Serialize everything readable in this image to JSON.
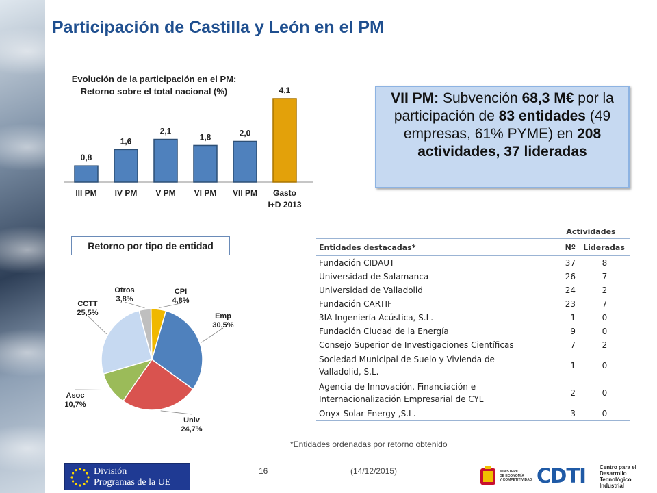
{
  "slide": {
    "title": "Participación de Castilla y León en el PM",
    "page_number": "16",
    "date": "(14/12/2015)",
    "footnote": "*Entidades ordenadas por retorno obtenido"
  },
  "infobox": {
    "part1": "VII PM:",
    "part2": " Subvención ",
    "part3": "68,3 M€",
    "part4": " por la participación de ",
    "part5": "83 entidades",
    "part6": " (49 empresas, 61% PYME) en ",
    "part7": "208 actividades, 37 lideradas"
  },
  "retorno_label": "Retorno por tipo de entidad",
  "chart_data": [
    {
      "type": "bar",
      "title": "Evolución de la participación en el PM:",
      "subtitle": "Retorno sobre el total nacional (%)",
      "categories": [
        "III PM",
        "IV PM",
        "V PM",
        "VI PM",
        "VII PM",
        "Gasto I+D 2013"
      ],
      "values": [
        0.8,
        1.6,
        2.1,
        1.8,
        2.0,
        4.1
      ],
      "value_labels": [
        "0,8",
        "1,6",
        "2,1",
        "1,8",
        "2,0",
        "4,1"
      ],
      "ylim": [
        0,
        4.1
      ],
      "grid": false,
      "colors": [
        "#4f81bd",
        "#4f81bd",
        "#4f81bd",
        "#4f81bd",
        "#4f81bd",
        "#e3a10a"
      ]
    },
    {
      "type": "pie",
      "labels": [
        "CPI",
        "Emp",
        "Univ",
        "Asoc",
        "CCTT",
        "Otros"
      ],
      "values": [
        4.8,
        30.5,
        24.7,
        10.7,
        25.5,
        3.8
      ],
      "value_labels": [
        "4,8%",
        "30,5%",
        "24,7%",
        "10,7%",
        "25,5%",
        "3,8%"
      ],
      "colors": [
        "#f0b800",
        "#4f81bd",
        "#d9534f",
        "#9bbb59",
        "#c6d9f1",
        "#bfbfbf"
      ]
    }
  ],
  "table": {
    "group_header": "Actividades",
    "columns": [
      "Entidades destacadas*",
      "Nº",
      "Lideradas"
    ],
    "rows": [
      {
        "name": "Fundación CIDAUT",
        "n": "37",
        "lid": "8"
      },
      {
        "name": "Universidad de Salamanca",
        "n": "26",
        "lid": "7"
      },
      {
        "name": "Universidad de Valladolid",
        "n": "24",
        "lid": "2"
      },
      {
        "name": "Fundación CARTIF",
        "n": "23",
        "lid": "7"
      },
      {
        "name": "3IA Ingeniería Acústica, S.L.",
        "n": "1",
        "lid": "0"
      },
      {
        "name": "Fundación Ciudad de la Energía",
        "n": "9",
        "lid": "0"
      },
      {
        "name": "Consejo Superior de Investigaciones Científicas",
        "n": "7",
        "lid": "2"
      },
      {
        "name": "Sociedad Municipal de Suelo y Vivienda de Valladolid, S.L.",
        "n": "1",
        "lid": "0"
      },
      {
        "name": "Agencia de Innovación, Financiación e Internacionalización Empresarial de CYL",
        "n": "2",
        "lid": "0"
      },
      {
        "name": "Onyx-Solar Energy ,S.L.",
        "n": "3",
        "lid": "0"
      }
    ]
  },
  "footer": {
    "division_line1": "División",
    "division_line2": "Programas de la UE",
    "ministerio_line1": "MINISTERIO",
    "ministerio_line2": "DE ECONOMÍA",
    "ministerio_line3": "Y COMPETITIVIDAD",
    "cdti_logo": "CDTI",
    "cdti_line1": "Centro para el",
    "cdti_line2": "Desarrollo",
    "cdti_line3": "Tecnológico",
    "cdti_line4": "Industrial"
  }
}
